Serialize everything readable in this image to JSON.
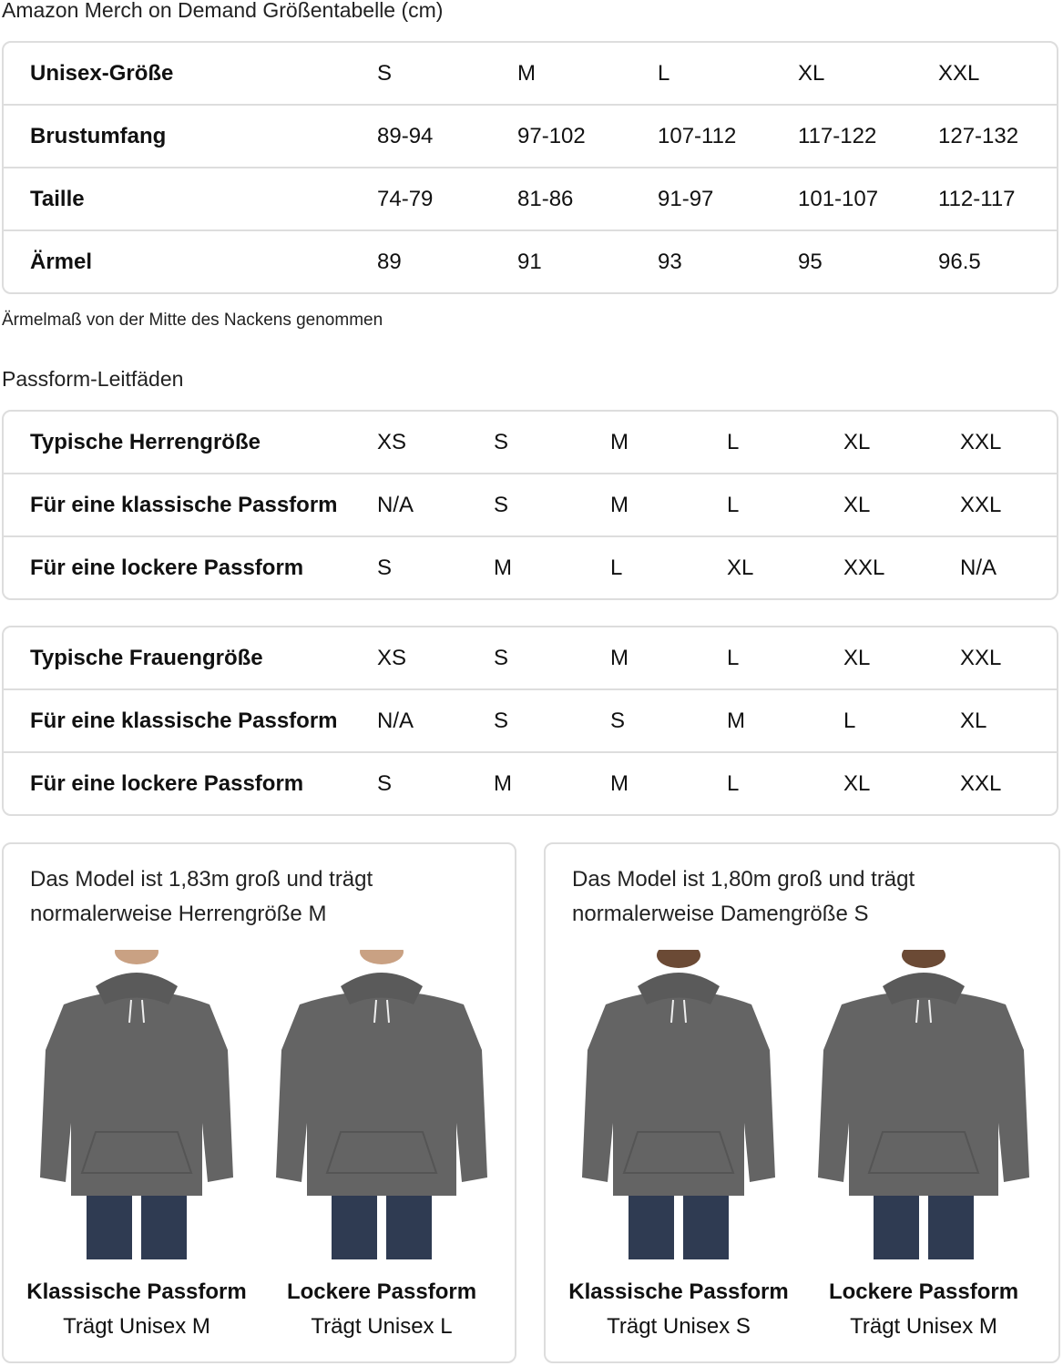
{
  "title": "Amazon Merch on Demand Größentabelle (cm)",
  "unisex_table": {
    "rows": [
      {
        "label": "Unisex-Größe",
        "values": [
          "S",
          "M",
          "L",
          "XL",
          "XXL"
        ]
      },
      {
        "label": "Brustumfang",
        "values": [
          "89-94",
          "97-102",
          "107-112",
          "117-122",
          "127-132"
        ]
      },
      {
        "label": "Taille",
        "values": [
          "74-79",
          "81-86",
          "91-97",
          "101-107",
          "112-117"
        ]
      },
      {
        "label": "Ärmel",
        "values": [
          "89",
          "91",
          "93",
          "95",
          "96.5"
        ]
      }
    ]
  },
  "sleeve_note": "Ärmelmaß von der Mitte des Nackens genommen",
  "fit_guides_title": "Passform-Leitfäden",
  "men_table": {
    "rows": [
      {
        "label": "Typische Herrengröße",
        "values": [
          "XS",
          "S",
          "M",
          "L",
          "XL",
          "XXL"
        ]
      },
      {
        "label": "Für eine klassische Passform",
        "values": [
          "N/A",
          "S",
          "M",
          "L",
          "XL",
          "XXL"
        ]
      },
      {
        "label": "Für eine lockere Passform",
        "values": [
          "S",
          "M",
          "L",
          "XL",
          "XXL",
          "N/A"
        ]
      }
    ]
  },
  "women_table": {
    "rows": [
      {
        "label": "Typische Frauengröße",
        "values": [
          "XS",
          "S",
          "M",
          "L",
          "XL",
          "XXL"
        ]
      },
      {
        "label": "Für eine klassische Passform",
        "values": [
          "N/A",
          "S",
          "S",
          "M",
          "L",
          "XL"
        ]
      },
      {
        "label": "Für eine lockere Passform",
        "values": [
          "S",
          "M",
          "M",
          "L",
          "XL",
          "XXL"
        ]
      }
    ]
  },
  "cards": [
    {
      "caption_line1": "Das Model ist 1,83m groß und trägt",
      "caption_line2": "normalerweise Herrengröße M",
      "models": [
        {
          "fit": "Klassische Passform",
          "wears": "Trägt Unisex M"
        },
        {
          "fit": "Lockere Passform",
          "wears": "Trägt Unisex L"
        }
      ]
    },
    {
      "caption_line1": "Das Model ist 1,80m groß und trägt",
      "caption_line2": "normalerweise Damengröße S",
      "models": [
        {
          "fit": "Klassische Passform",
          "wears": "Trägt Unisex S"
        },
        {
          "fit": "Lockere Passform",
          "wears": "Trägt Unisex M"
        }
      ]
    }
  ],
  "colors": {
    "hoodie": "#646464",
    "jeans": "#2f3b52",
    "border": "#dddddd"
  }
}
